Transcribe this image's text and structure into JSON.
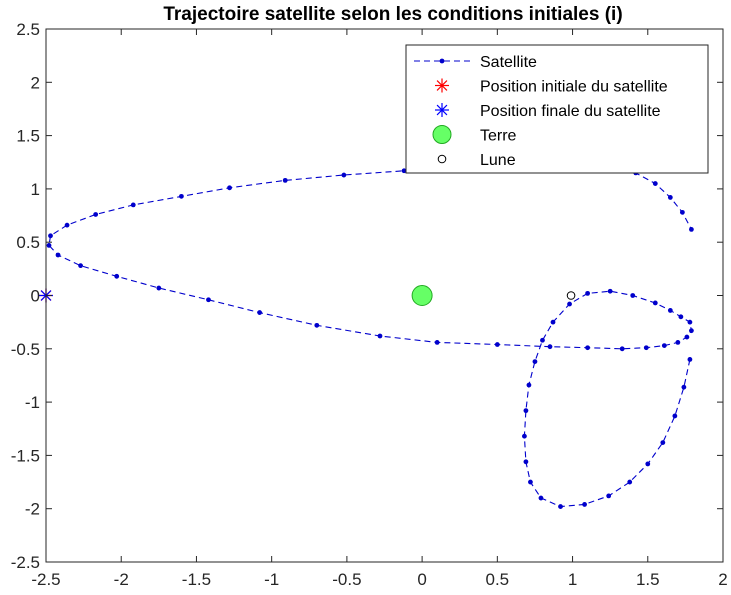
{
  "chart_data": {
    "type": "line",
    "title": "Trajectoire satellite selon les conditions initiales (i)",
    "xlabel": "",
    "ylabel": "",
    "xlim": [
      -2.5,
      2
    ],
    "ylim": [
      -2.5,
      2.5
    ],
    "x_ticks": [
      -2.5,
      -2,
      -1.5,
      -1,
      -0.5,
      0,
      0.5,
      1,
      1.5,
      2
    ],
    "x_tick_labels": [
      "-2.5",
      "-2",
      "-1.5",
      "-1",
      "-0.5",
      "0",
      "0.5",
      "1",
      "1.5",
      "2"
    ],
    "y_ticks": [
      -2.5,
      -2,
      -1.5,
      -1,
      -0.5,
      0,
      0.5,
      1,
      1.5,
      2,
      2.5
    ],
    "y_tick_labels": [
      "-2.5",
      "-2",
      "-1.5",
      "-1",
      "-0.5",
      "0",
      "0.5",
      "1",
      "1.5",
      "2",
      "2.5"
    ],
    "grid": false,
    "legend_position": "top-right",
    "colors": {
      "satellite": "#0000cc",
      "initial_marker": "#ff0000",
      "final_marker": "#0000ff",
      "earth_fill": "#66ff66",
      "earth_edge": "#22aa22",
      "moon": "#000000"
    },
    "series": [
      {
        "name": "Satellite",
        "style": "dashed-line-dots",
        "x": [
          1.78,
          1.74,
          1.68,
          1.6,
          1.5,
          1.38,
          1.24,
          1.08,
          0.92,
          0.79,
          0.72,
          0.69,
          0.68,
          0.69,
          0.71,
          0.75,
          0.8,
          0.87,
          0.98,
          1.1,
          1.25,
          1.4,
          1.55,
          1.65,
          1.72,
          1.78,
          1.79,
          1.76,
          1.7,
          1.61,
          1.49,
          1.33,
          1.1,
          0.85,
          0.5,
          0.1,
          -0.28,
          -0.7,
          -1.08,
          -1.42,
          -1.75,
          -2.03,
          -2.27,
          -2.42,
          -2.48,
          -2.47,
          -2.36,
          -2.17,
          -1.92,
          -1.6,
          -1.28,
          -0.91,
          -0.52,
          -0.12,
          0.2,
          0.5,
          0.8,
          1.05,
          1.25,
          1.42,
          1.55,
          1.65,
          1.73,
          1.79
        ],
        "y": [
          -0.6,
          -0.86,
          -1.13,
          -1.38,
          -1.58,
          -1.75,
          -1.88,
          -1.96,
          -1.98,
          -1.9,
          -1.75,
          -1.56,
          -1.32,
          -1.08,
          -0.84,
          -0.62,
          -0.42,
          -0.25,
          -0.08,
          0.02,
          0.04,
          0,
          -0.07,
          -0.14,
          -0.2,
          -0.25,
          -0.33,
          -0.39,
          -0.44,
          -0.47,
          -0.49,
          -0.5,
          -0.49,
          -0.48,
          -0.46,
          -0.44,
          -0.38,
          -0.28,
          -0.16,
          -0.04,
          0.07,
          0.18,
          0.28,
          0.38,
          0.47,
          0.56,
          0.66,
          0.76,
          0.85,
          0.93,
          1.01,
          1.08,
          1.13,
          1.17,
          1.2,
          1.22,
          1.24,
          1.25,
          1.22,
          1.15,
          1.05,
          0.92,
          0.78,
          0.62
        ],
        "_note_removed": true
      }
    ],
    "markers": [
      {
        "name": "Position initiale du satellite",
        "symbol": "asterisk",
        "x": -2.5,
        "y": 0
      },
      {
        "name": "Position finale du satellite",
        "symbol": "asterisk",
        "x": -2.5,
        "y": 0
      },
      {
        "name": "Terre",
        "symbol": "filled-circle",
        "x": 0,
        "y": 0
      },
      {
        "name": "Lune",
        "symbol": "open-circle",
        "x": 0.99,
        "y": 0
      }
    ]
  }
}
